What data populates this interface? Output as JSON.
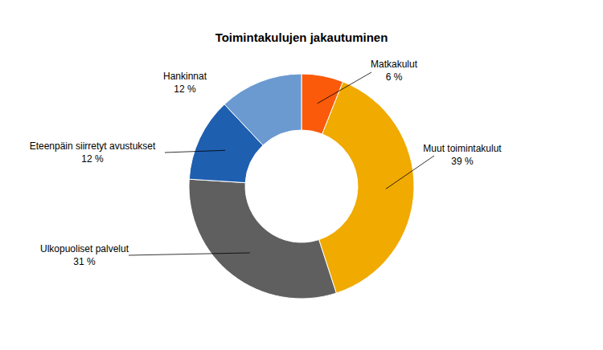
{
  "chart_data": {
    "type": "pie",
    "title": "Toimintakulujen jakautuminen",
    "categories": [
      "Matkakulut",
      "Muut toimintakulut",
      "Ulkopuoliset palvelut",
      "Eteenpäin siirretyt avustukset",
      "Hankinnat"
    ],
    "values": [
      6,
      39,
      31,
      12,
      12
    ],
    "value_labels": [
      "6 %",
      "39 %",
      "31 %",
      "12 %",
      "12 %"
    ],
    "colors": [
      "#fa5a0a",
      "#f0aa00",
      "#5f5f5f",
      "#1f5fb0",
      "#6a9ad0"
    ],
    "data_labels": true
  }
}
